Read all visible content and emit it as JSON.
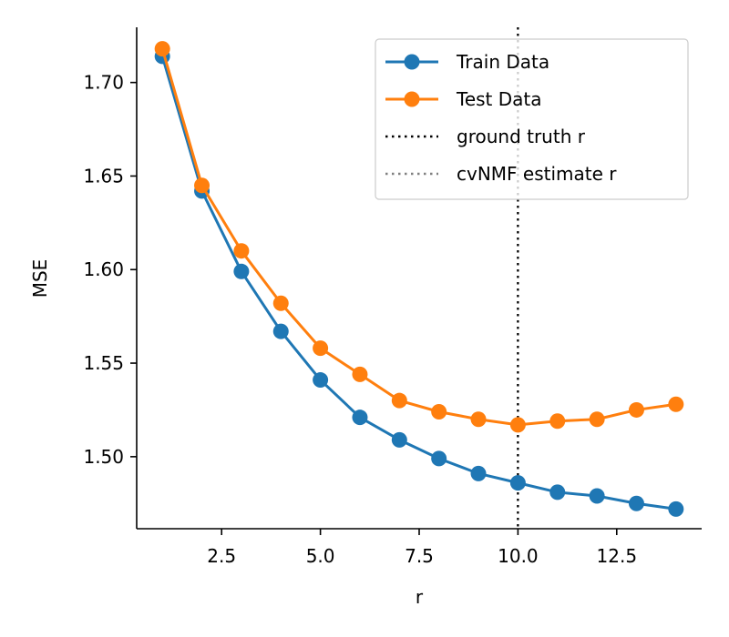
{
  "chart_data": {
    "type": "line",
    "title": "",
    "xlabel": "r",
    "ylabel": "MSE",
    "xlim": [
      0.35,
      14.65
    ],
    "ylim": [
      1.4615,
      1.7295
    ],
    "grid": false,
    "legend_position": "top-right",
    "x_ticks": [
      2.5,
      5.0,
      7.5,
      10.0,
      12.5
    ],
    "x_tick_labels": [
      "2.5",
      "5.0",
      "7.5",
      "10.0",
      "12.5"
    ],
    "y_ticks": [
      1.5,
      1.55,
      1.6,
      1.65,
      1.7
    ],
    "y_tick_labels": [
      "1.50",
      "1.55",
      "1.60",
      "1.65",
      "1.70"
    ],
    "x": [
      1,
      2,
      3,
      4,
      5,
      6,
      7,
      8,
      9,
      10,
      11,
      12,
      13,
      14
    ],
    "series": [
      {
        "name": "Train Data",
        "color": "#1f77b4",
        "marker": "circle",
        "values": [
          1.714,
          1.642,
          1.599,
          1.567,
          1.541,
          1.521,
          1.509,
          1.499,
          1.491,
          1.486,
          1.481,
          1.479,
          1.475,
          1.472
        ]
      },
      {
        "name": "Test Data",
        "color": "#ff7f0e",
        "marker": "circle",
        "values": [
          1.718,
          1.645,
          1.61,
          1.582,
          1.558,
          1.544,
          1.53,
          1.524,
          1.52,
          1.517,
          1.519,
          1.52,
          1.525,
          1.528
        ]
      }
    ],
    "vlines": [
      {
        "name": "ground truth r",
        "x": 10,
        "color": "#000000",
        "style": "dotted"
      },
      {
        "name": "cvNMF estimate r",
        "x": 10,
        "color": "#808080",
        "style": "dotted"
      }
    ]
  }
}
